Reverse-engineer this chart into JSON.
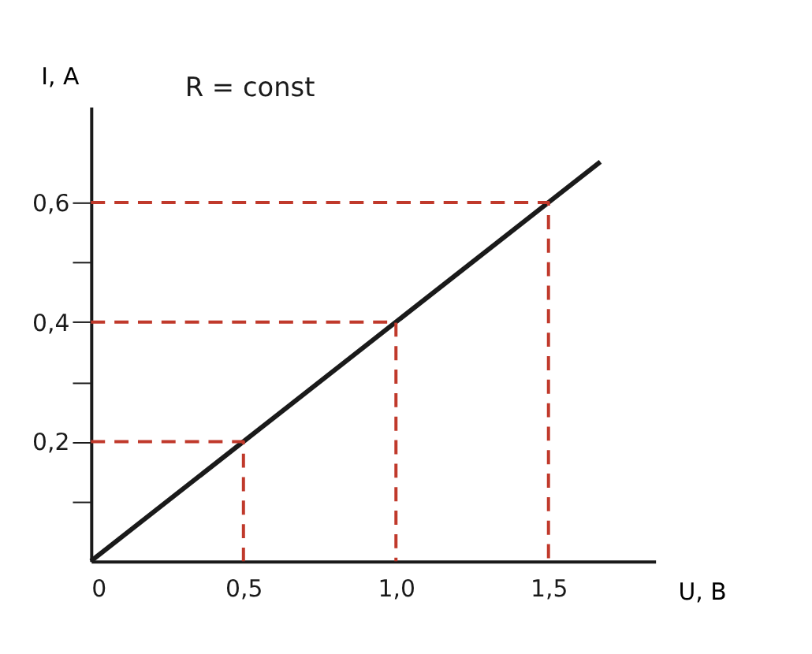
{
  "chart_data": {
    "type": "line",
    "xlabel": "U, B",
    "ylabel": "I, A",
    "annotations": [
      "R = const"
    ],
    "xlim": [
      0,
      1.85
    ],
    "ylim": [
      0,
      0.76
    ],
    "xticks": [
      {
        "value": 0,
        "label": "0"
      },
      {
        "value": 0.5,
        "label": "0,5"
      },
      {
        "value": 1.0,
        "label": "1,0"
      },
      {
        "value": 1.5,
        "label": "1,5"
      }
    ],
    "yticks": [
      {
        "value": 0.1,
        "label": null
      },
      {
        "value": 0.2,
        "label": "0,2"
      },
      {
        "value": 0.3,
        "label": null
      },
      {
        "value": 0.4,
        "label": "0,4"
      },
      {
        "value": 0.5,
        "label": null
      },
      {
        "value": 0.6,
        "label": "0,6"
      }
    ],
    "grid": false,
    "marker": "none",
    "series": [
      {
        "color": "#1a1a1a",
        "line_style": "solid",
        "x": [
          0,
          1.67
        ],
        "values": [
          0,
          0.668
        ]
      },
      {
        "color": "#c0392b",
        "line_style": "dashed",
        "x": [
          0,
          0.5,
          0.5
        ],
        "values": [
          0.2,
          0.2,
          0
        ]
      },
      {
        "color": "#c0392b",
        "line_style": "dashed",
        "x": [
          0,
          1.0,
          1.0
        ],
        "values": [
          0.4,
          0.4,
          0
        ]
      },
      {
        "color": "#c0392b",
        "line_style": "dashed",
        "x": [
          0,
          1.5,
          1.5
        ],
        "values": [
          0.6,
          0.6,
          0
        ]
      }
    ]
  }
}
